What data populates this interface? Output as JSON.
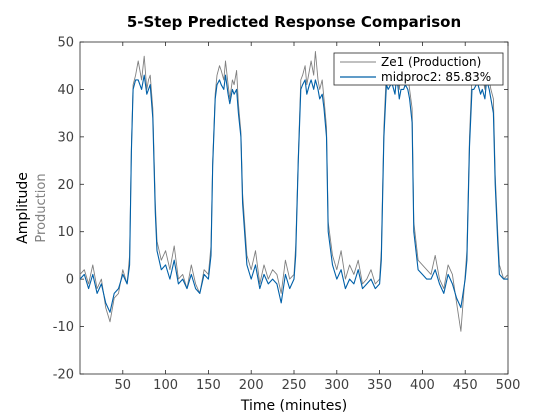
{
  "chart_data": {
    "type": "line",
    "title": "5-Step Predicted Response Comparison",
    "xlabel": "Time (minutes)",
    "ylabel": "Amplitude",
    "ylabel_channel": "Production",
    "xlim": [
      0,
      500
    ],
    "ylim": [
      -20,
      50
    ],
    "xticks": [
      50,
      100,
      150,
      200,
      250,
      300,
      350,
      400,
      450,
      500
    ],
    "yticks": [
      -20,
      -10,
      0,
      10,
      20,
      30,
      40,
      50
    ],
    "grid": false,
    "legend_position": "top-right",
    "series": [
      {
        "name": "Ze1 (Production)",
        "color": "#808080",
        "x": [
          0,
          5,
          10,
          15,
          20,
          25,
          30,
          35,
          40,
          45,
          50,
          55,
          58,
          60,
          62,
          65,
          68,
          70,
          72,
          75,
          78,
          80,
          82,
          85,
          88,
          90,
          95,
          100,
          105,
          110,
          115,
          120,
          125,
          130,
          135,
          140,
          145,
          150,
          153,
          155,
          158,
          160,
          163,
          165,
          168,
          170,
          173,
          175,
          178,
          180,
          183,
          185,
          188,
          190,
          195,
          200,
          205,
          210,
          215,
          220,
          225,
          230,
          235,
          240,
          245,
          250,
          252,
          255,
          258,
          260,
          263,
          265,
          268,
          270,
          273,
          275,
          278,
          280,
          283,
          285,
          288,
          290,
          295,
          300,
          305,
          310,
          315,
          320,
          325,
          330,
          335,
          340,
          345,
          350,
          352,
          355,
          358,
          360,
          363,
          365,
          368,
          370,
          373,
          375,
          378,
          380,
          383,
          385,
          388,
          390,
          395,
          400,
          405,
          410,
          415,
          420,
          425,
          430,
          435,
          440,
          445,
          450,
          452,
          455,
          458,
          460,
          463,
          465,
          468,
          470,
          473,
          475,
          478,
          480,
          483,
          485,
          488,
          490,
          495,
          500
        ],
        "y": [
          1,
          2,
          -1,
          3,
          -2,
          0,
          -6,
          -9,
          -4,
          -3,
          2,
          -1,
          5,
          28,
          41,
          43,
          46,
          44,
          42,
          47,
          40,
          42,
          43,
          36,
          16,
          8,
          4,
          6,
          2,
          7,
          0,
          1,
          -2,
          3,
          -1,
          -3,
          2,
          1,
          7,
          25,
          39,
          43,
          45,
          44,
          42,
          46,
          41,
          38,
          42,
          41,
          44,
          37,
          31,
          18,
          5,
          2,
          6,
          -1,
          3,
          0,
          2,
          1,
          -3,
          4,
          0,
          1,
          7,
          26,
          42,
          43,
          45,
          41,
          44,
          46,
          43,
          48,
          42,
          40,
          42,
          38,
          32,
          12,
          5,
          2,
          6,
          0,
          3,
          1,
          4,
          -1,
          0,
          2,
          -1,
          0,
          6,
          32,
          44,
          42,
          43,
          44,
          41,
          47,
          40,
          44,
          42,
          45,
          43,
          40,
          36,
          12,
          4,
          3,
          2,
          1,
          5,
          0,
          -2,
          3,
          1,
          -5,
          -11,
          1,
          6,
          30,
          43,
          42,
          44,
          45,
          41,
          43,
          40,
          47,
          42,
          40,
          38,
          22,
          10,
          3,
          0,
          1
        ]
      },
      {
        "name": "midproc2: 85.83%",
        "color": "#0060a8",
        "x": [
          0,
          5,
          10,
          15,
          20,
          25,
          30,
          35,
          40,
          45,
          50,
          55,
          58,
          60,
          62,
          65,
          68,
          70,
          72,
          75,
          78,
          80,
          82,
          85,
          88,
          90,
          95,
          100,
          105,
          110,
          115,
          120,
          125,
          130,
          135,
          140,
          145,
          150,
          153,
          155,
          158,
          160,
          163,
          165,
          168,
          170,
          173,
          175,
          178,
          180,
          183,
          185,
          188,
          190,
          195,
          200,
          205,
          210,
          215,
          220,
          225,
          230,
          235,
          240,
          245,
          250,
          252,
          255,
          258,
          260,
          263,
          265,
          268,
          270,
          273,
          275,
          278,
          280,
          283,
          285,
          288,
          290,
          295,
          300,
          305,
          310,
          315,
          320,
          325,
          330,
          335,
          340,
          345,
          350,
          352,
          355,
          358,
          360,
          363,
          365,
          368,
          370,
          373,
          375,
          378,
          380,
          383,
          385,
          388,
          390,
          395,
          400,
          405,
          410,
          415,
          420,
          425,
          430,
          435,
          440,
          445,
          450,
          452,
          455,
          458,
          460,
          463,
          465,
          468,
          470,
          473,
          475,
          478,
          480,
          483,
          485,
          488,
          490,
          495,
          500
        ],
        "y": [
          0,
          1,
          -2,
          1,
          -3,
          -1,
          -5,
          -7,
          -3,
          -2,
          1,
          -1,
          3,
          27,
          40,
          42,
          42,
          41,
          40,
          43,
          39,
          40,
          41,
          34,
          14,
          6,
          2,
          3,
          0,
          4,
          -1,
          0,
          -2,
          1,
          -2,
          -3,
          1,
          0,
          5,
          24,
          38,
          41,
          42,
          41,
          40,
          43,
          39,
          37,
          40,
          39,
          40,
          35,
          30,
          16,
          3,
          0,
          3,
          -2,
          1,
          -1,
          0,
          -1,
          -5,
          1,
          -2,
          0,
          5,
          25,
          40,
          41,
          42,
          39,
          41,
          42,
          40,
          42,
          40,
          38,
          39,
          36,
          30,
          10,
          3,
          0,
          2,
          -2,
          0,
          -1,
          2,
          -2,
          -1,
          0,
          -2,
          -1,
          4,
          30,
          41,
          40,
          41,
          41,
          39,
          43,
          38,
          40,
          40,
          41,
          40,
          38,
          33,
          10,
          2,
          1,
          0,
          0,
          2,
          -1,
          -3,
          1,
          -1,
          -4,
          -6,
          0,
          4,
          28,
          40,
          40,
          41,
          41,
          39,
          40,
          38,
          42,
          40,
          38,
          35,
          20,
          8,
          1,
          0,
          0
        ]
      }
    ]
  }
}
